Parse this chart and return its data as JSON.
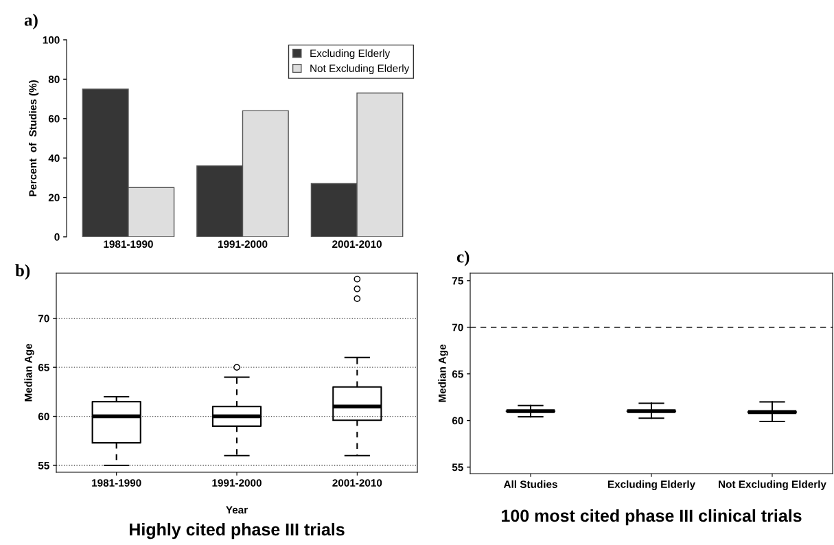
{
  "chart_data": [
    {
      "type": "bar",
      "title": "a)",
      "ylabel": "Percent  of  Studies (%)",
      "categories": [
        "1981-1990",
        "1991-2000",
        "2001-2010"
      ],
      "series": [
        {
          "name": "Excluding Elderly",
          "color": "#363636",
          "values": [
            75,
            36,
            27
          ]
        },
        {
          "name": "Not Excluding Elderly",
          "color": "#dedede",
          "values": [
            25,
            64,
            73
          ]
        }
      ],
      "ylim": [
        0,
        100
      ],
      "yticks": [
        0,
        20,
        40,
        60,
        80,
        100
      ],
      "legend": "top right",
      "grid": false
    },
    {
      "type": "box",
      "title": "b)",
      "xlabel": "Year",
      "ylabel": "Median Age",
      "annotations": [
        "Highly cited phase III trials"
      ],
      "categories": [
        "1981-1990",
        "1991-2000",
        "2001-2010"
      ],
      "boxes": [
        {
          "low": 55,
          "q1": 57.3,
          "median": 60,
          "q3": 61.5,
          "high": 62
        },
        {
          "low": 56,
          "q1": 59,
          "median": 60,
          "q3": 61,
          "high": 64,
          "outliers": [
            65
          ]
        },
        {
          "low": 56,
          "q1": 59.6,
          "median": 61,
          "q3": 63,
          "high": 66,
          "outliers": [
            72,
            73,
            74
          ]
        }
      ],
      "ylim": [
        54.3,
        74.6
      ],
      "yticks": [
        55,
        60,
        65,
        70
      ],
      "grid": "y",
      "line_style": "dashed"
    },
    {
      "type": "box",
      "title": "c)",
      "ylabel": "Median Age",
      "annotations": [
        "100 most cited phase III clinical trials"
      ],
      "categories": [
        "All Studies",
        "Excluding Elderly",
        "Not Excluding Elderly"
      ],
      "boxes": [
        {
          "low": 60.4,
          "q1": 61,
          "median": 61,
          "q3": 61,
          "high": 61.6
        },
        {
          "low": 60.25,
          "q1": 61,
          "median": 61,
          "q3": 61,
          "high": 61.85
        },
        {
          "low": 59.9,
          "q1": 60.9,
          "median": 60.9,
          "q3": 60.9,
          "high": 62
        }
      ],
      "line_style": "solid",
      "ref_lines": [
        {
          "axis": "y",
          "value": 70,
          "line_style": "dashed"
        }
      ],
      "ylim": [
        54.3,
        75.8
      ],
      "yticks": [
        55,
        60,
        65,
        70,
        75
      ],
      "grid": false
    }
  ]
}
